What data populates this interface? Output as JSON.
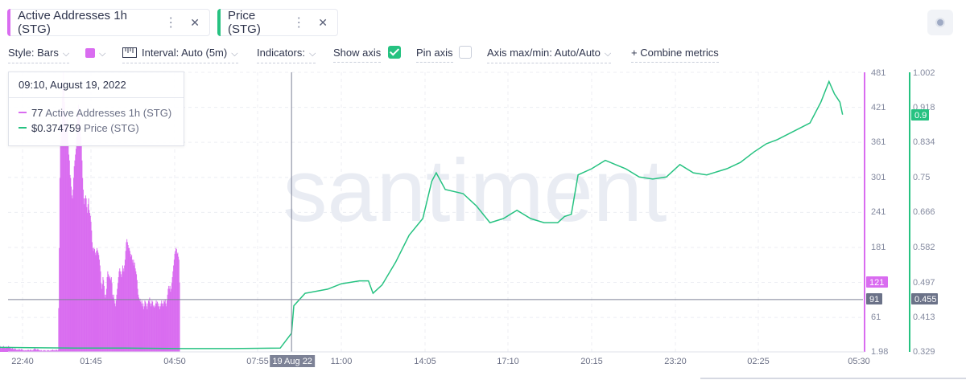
{
  "metrics": [
    {
      "label": "Active Addresses 1h (STG)",
      "color": "#d96cf0"
    },
    {
      "label": "Price (STG)",
      "color": "#26c281"
    }
  ],
  "toolbar": {
    "style_label": "Style: Bars",
    "interval_label": "Interval: Auto (5m)",
    "indicators_label": "Indicators:",
    "show_axis_label": "Show axis",
    "pin_axis_label": "Pin axis",
    "axis_maxmin_label": "Axis max/min: Auto/Auto",
    "combine_label": "+ Combine metrics"
  },
  "tooltip": {
    "date": "09:10, August 19, 2022",
    "rows": [
      {
        "value": "77",
        "name": "Active Addresses 1h (STG)",
        "color": "#d96cf0"
      },
      {
        "value": "$0.374759",
        "name": "Price (STG)",
        "color": "#26c281"
      }
    ]
  },
  "chart_data": {
    "type": "bar",
    "watermark": "santiment",
    "x_ticks": [
      "22:40",
      "01:45",
      "04:50",
      "07:55",
      "11:00",
      "14:05",
      "17:10",
      "20:15",
      "23:20",
      "02:25",
      "05:30"
    ],
    "x_highlight": "19 Aug 22",
    "left_axis": {
      "ticks": [
        "481",
        "421",
        "361",
        "301",
        "241",
        "181",
        "121",
        "91",
        "61",
        "1.98"
      ],
      "range": [
        1.98,
        481
      ],
      "markers": [
        {
          "value": "121",
          "color": "#d96cf0"
        },
        {
          "value": "91",
          "color": "#6b7288"
        }
      ]
    },
    "right_axis": {
      "ticks": [
        "1.002",
        "0.918",
        "0.834",
        "0.75",
        "0.666",
        "0.582",
        "0.497",
        "0.455",
        "0.413",
        "0.329"
      ],
      "range": [
        0.329,
        1.002
      ],
      "markers": [
        {
          "value": "0.9",
          "color": "#26c281"
        },
        {
          "value": "0.455",
          "color": "#6b7288"
        }
      ]
    },
    "crosshair": {
      "x": "09:10",
      "active_addresses": 77,
      "price": 0.455
    },
    "series": [
      {
        "name": "Active Addresses 1h (STG)",
        "axis": "left",
        "kind": "bar",
        "color": "#d96cf0",
        "x_range": [
          "21:30",
          "05:00"
        ],
        "values": [
          8,
          10,
          9,
          11,
          10,
          12,
          9,
          8,
          10,
          9,
          11,
          12,
          10,
          9,
          8,
          10,
          11,
          9,
          10,
          12,
          11,
          10,
          9,
          8,
          7,
          8,
          9,
          7,
          6,
          7,
          8,
          7,
          6,
          5,
          6,
          5,
          6,
          7,
          6,
          5,
          6,
          7,
          6,
          5,
          4,
          5,
          4,
          5,
          4,
          5,
          4,
          5,
          6,
          5,
          4,
          5,
          6,
          5,
          4,
          5,
          4,
          6,
          7,
          8,
          7,
          6,
          5,
          6,
          7,
          6,
          5,
          4,
          5,
          4,
          5,
          4,
          3,
          4,
          5,
          4,
          5,
          4,
          3,
          4,
          5,
          4,
          5,
          4,
          4,
          4,
          5,
          4,
          5,
          6,
          5,
          4,
          5,
          4,
          5,
          6,
          5,
          4,
          5,
          77,
          180,
          300,
          420,
          360,
          390,
          440,
          460,
          481,
          455,
          430,
          400,
          380,
          395,
          410,
          385,
          360,
          340,
          330,
          305,
          300,
          285,
          270,
          265,
          280,
          300,
          320,
          330,
          340,
          350,
          370,
          395,
          415,
          425,
          420,
          400,
          390,
          370,
          355,
          330,
          300,
          280,
          265,
          255,
          265,
          270,
          265,
          250,
          240,
          255,
          265,
          245,
          240,
          235,
          225,
          210,
          190,
          180,
          175,
          180,
          178,
          172,
          168,
          175,
          180,
          176,
          172,
          168,
          160,
          150,
          140,
          120,
          110,
          118,
          130,
          125,
          115,
          100,
          95,
          100,
          110,
          130,
          140,
          135,
          130,
          132,
          128,
          125,
          130,
          120,
          100,
          95,
          100,
          90,
          85,
          80,
          90,
          100,
          110,
          120,
          130,
          140,
          145,
          140,
          135,
          130,
          140,
          150,
          145,
          140,
          150,
          160,
          175,
          190,
          195,
          190,
          185,
          180,
          180,
          175,
          170,
          165,
          168,
          160,
          155,
          160,
          150,
          155,
          145,
          140,
          135,
          125,
          110,
          100,
          95,
          90,
          93,
          88,
          85,
          90,
          80,
          85,
          75,
          80,
          90,
          88,
          85,
          80,
          75,
          85,
          90,
          88,
          95,
          85,
          80,
          85,
          90,
          88,
          80,
          82,
          78,
          80,
          85,
          90,
          85,
          88,
          80,
          85,
          80,
          75,
          80,
          85,
          90,
          85,
          80,
          85,
          90,
          88,
          92,
          85,
          80,
          90,
          100,
          110,
          115,
          110,
          115,
          105,
          110,
          120,
          130,
          140,
          150,
          160,
          170,
          175,
          180,
          178,
          170,
          172,
          165,
          160,
          121
        ]
      },
      {
        "name": "Price (STG)",
        "axis": "right",
        "kind": "line",
        "color": "#26c281",
        "points": [
          [
            "21:30",
            0.34
          ],
          [
            "23:00",
            0.339
          ],
          [
            "01:00",
            0.338
          ],
          [
            "03:00",
            0.338
          ],
          [
            "05:00",
            0.337
          ],
          [
            "07:00",
            0.337
          ],
          [
            "08:45",
            0.338
          ],
          [
            "09:10",
            0.374
          ],
          [
            "09:15",
            0.44
          ],
          [
            "09:40",
            0.47
          ],
          [
            "10:30",
            0.48
          ],
          [
            "11:00",
            0.493
          ],
          [
            "11:40",
            0.5
          ],
          [
            "12:00",
            0.5
          ],
          [
            "12:10",
            0.47
          ],
          [
            "12:30",
            0.49
          ],
          [
            "13:00",
            0.545
          ],
          [
            "13:30",
            0.61
          ],
          [
            "14:00",
            0.65
          ],
          [
            "14:20",
            0.74
          ],
          [
            "14:30",
            0.76
          ],
          [
            "14:50",
            0.72
          ],
          [
            "15:30",
            0.71
          ],
          [
            "16:00",
            0.68
          ],
          [
            "16:30",
            0.64
          ],
          [
            "17:00",
            0.65
          ],
          [
            "17:30",
            0.67
          ],
          [
            "18:00",
            0.65
          ],
          [
            "18:30",
            0.64
          ],
          [
            "19:00",
            0.64
          ],
          [
            "19:15",
            0.655
          ],
          [
            "19:30",
            0.66
          ],
          [
            "19:45",
            0.755
          ],
          [
            "20:15",
            0.77
          ],
          [
            "20:45",
            0.79
          ],
          [
            "21:30",
            0.77
          ],
          [
            "22:00",
            0.75
          ],
          [
            "22:30",
            0.745
          ],
          [
            "23:00",
            0.75
          ],
          [
            "23:30",
            0.78
          ],
          [
            "00:00",
            0.76
          ],
          [
            "00:30",
            0.755
          ],
          [
            "01:15",
            0.77
          ],
          [
            "01:45",
            0.785
          ],
          [
            "02:15",
            0.81
          ],
          [
            "02:40",
            0.83
          ],
          [
            "03:00",
            0.84
          ],
          [
            "03:30",
            0.86
          ],
          [
            "04:00",
            0.88
          ],
          [
            "04:20",
            0.93
          ],
          [
            "04:35",
            0.98
          ],
          [
            "04:45",
            0.95
          ],
          [
            "04:55",
            0.93
          ],
          [
            "05:00",
            0.9
          ]
        ]
      }
    ]
  }
}
